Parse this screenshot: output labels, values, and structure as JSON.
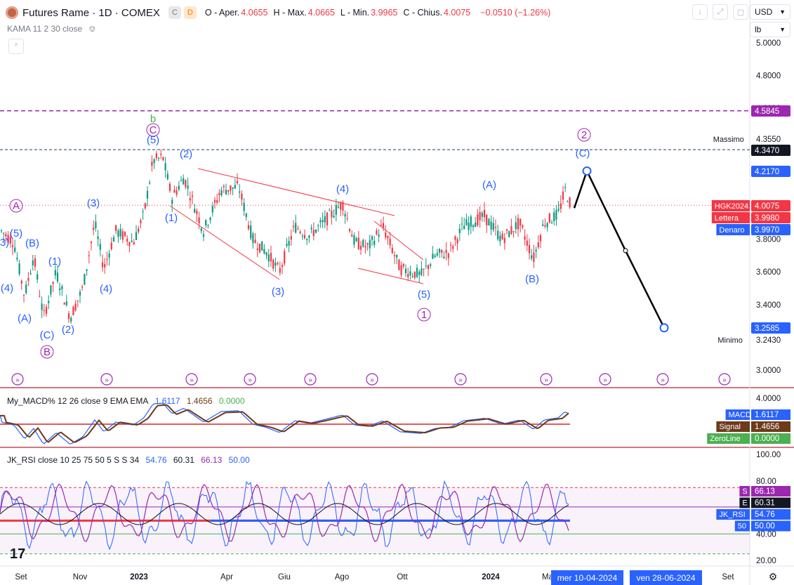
{
  "header": {
    "symbol": "Futures Rame · 1D · COMEX",
    "badge_c": "C",
    "badge_d": "D",
    "ohlc": [
      {
        "k": "O - Aper.",
        "v": "4.0655"
      },
      {
        "k": "H - Max.",
        "v": "4.0665"
      },
      {
        "k": "L - Min.",
        "v": "3.9965"
      },
      {
        "k": "C - Chius.",
        "v": "4.0075"
      }
    ],
    "change": "−0.0510 (−1.26%)",
    "kama": "KAMA 11 2 30 close",
    "collapse": "^"
  },
  "controls": {
    "currency": "USD",
    "unit": "lb"
  },
  "colors": {
    "up": "#089981",
    "down": "#f23645",
    "wave": "#2962ff",
    "wave_alt": "#9c27b0",
    "line_red": "#f23645",
    "price_bg": "#f23645",
    "blue": "#2962ff"
  },
  "chart_data": {
    "type": "candlestick",
    "x_ticks": [
      "Set",
      "Nov",
      "2023",
      "Apr",
      "Giu",
      "Ago",
      "Ott",
      "2024",
      "Ma",
      "Set"
    ],
    "y_ticks": [
      "5.0000",
      "4.8000",
      "4.5845",
      "4.3550",
      "4.3470",
      "4.2170",
      "4.0075",
      "3.9980",
      "3.9970",
      "3.8000",
      "3.6000",
      "3.4000",
      "3.2585",
      "3.2430",
      "3.0000"
    ],
    "price_labels": [
      {
        "text": "4.5845",
        "bg": "#9c27b0"
      },
      {
        "text": "4.3550",
        "name": "Massimo"
      },
      {
        "text": "4.3470",
        "bg": "#131722"
      },
      {
        "text": "4.2170",
        "bg": "#2962ff"
      },
      {
        "text": "4.0075",
        "name": "HGK2024",
        "bg": "#f23645"
      },
      {
        "text": "3.9980",
        "name": "Lettera",
        "bg": "#f23645"
      },
      {
        "text": "3.9970",
        "name": "Denaro",
        "bg": "#2962ff"
      },
      {
        "text": "3.2585",
        "bg": "#2962ff"
      },
      {
        "text": "3.2430",
        "name": "Minimo"
      }
    ],
    "wave_labels": [
      "(3)",
      "(5)",
      "(B)",
      "(4)",
      "(A)",
      "(1)",
      "(C)",
      "B",
      "(2)",
      "(3)",
      "(4)",
      "b",
      "C",
      "(5)",
      "(2)",
      "(1)",
      "(3)",
      "(4)",
      "(5)",
      "1",
      "(A)",
      "(B)",
      "2",
      "(C)",
      "A"
    ],
    "projection": [
      {
        "price": 3.99
      },
      {
        "price": 4.217
      },
      {
        "price": 3.73
      },
      {
        "price": 3.2585
      }
    ],
    "last_price": 4.0075,
    "ylim": [
      2.95,
      5.02
    ]
  },
  "macd": {
    "label": "My_MACD% 12 26 close 9 EMA EMA",
    "v1": "1.6117",
    "v2": "1.4656",
    "v3": "0.0000",
    "ticks": [
      "4.0000"
    ],
    "pills": [
      {
        "name": "MACD",
        "val": "1.6117",
        "bg": "#2962ff"
      },
      {
        "name": "Signal",
        "val": "1.4656",
        "bg": "#6d3a1a"
      },
      {
        "name": "ZeroLine",
        "val": "0.0000",
        "bg": "#4caf50"
      }
    ]
  },
  "rsi": {
    "label": "JK_RSI close 10 25 75 50 5 S S 34",
    "v1": "54.76",
    "v2": "60.31",
    "v3": "66.13",
    "v4": "50.00",
    "ticks": [
      "100.00",
      "80.00",
      "40.00",
      "20.00"
    ],
    "pills": [
      {
        "name": "S",
        "val": "66.13",
        "bg": "#9c27b0"
      },
      {
        "name": "E",
        "val": "60.31",
        "bg": "#131722"
      },
      {
        "name": "JK_RSI",
        "val": "54.76",
        "bg": "#2962ff"
      },
      {
        "name": "50",
        "val": "50.00",
        "bg": "#2962ff"
      }
    ]
  },
  "time_bubbles": [
    "mer 10-04-2024",
    "ven 28-06-2024"
  ]
}
